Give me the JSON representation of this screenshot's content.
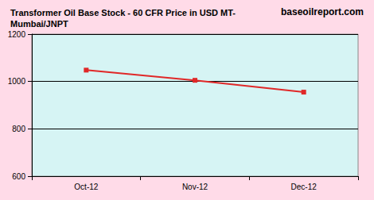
{
  "chart_data": {
    "type": "line",
    "title": "Transformer Oil Base Stock - 60 CFR Price in USD MT- Mumbai/JNPT",
    "annotation": "baseoilreport.com",
    "categories": [
      "Oct-12",
      "Nov-12",
      "Dec-12"
    ],
    "values": [
      1048,
      1005,
      955
    ],
    "color": "#e02828",
    "marker": "square",
    "ylim": [
      600,
      1200
    ],
    "yticks": [
      600,
      800,
      1000,
      1200
    ],
    "grid": true
  }
}
